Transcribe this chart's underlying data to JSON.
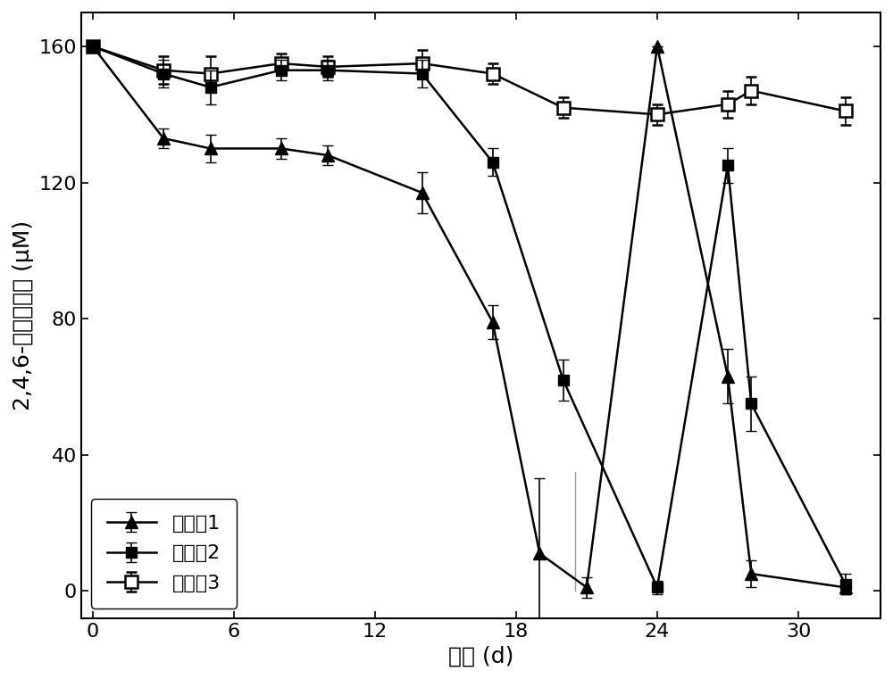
{
  "series1": {
    "label": "实施例1",
    "x": [
      0,
      3,
      5,
      8,
      10,
      14,
      17,
      19,
      21,
      24,
      27,
      28,
      32
    ],
    "y": [
      160,
      133,
      130,
      130,
      128,
      117,
      79,
      11,
      1,
      160,
      63,
      5,
      1
    ],
    "yerr": [
      0,
      3,
      4,
      3,
      3,
      6,
      5,
      22,
      3,
      0,
      8,
      4,
      2
    ],
    "marker": "^",
    "markersize": 10
  },
  "series2": {
    "label": "实施例2",
    "x": [
      0,
      3,
      5,
      8,
      10,
      14,
      17,
      20,
      24,
      27,
      28,
      32
    ],
    "y": [
      160,
      152,
      148,
      153,
      153,
      152,
      126,
      62,
      1,
      125,
      55,
      2
    ],
    "yerr": [
      0,
      4,
      5,
      3,
      3,
      4,
      4,
      6,
      2,
      5,
      8,
      3
    ],
    "marker": "s",
    "markersize": 9
  },
  "series3": {
    "label": "实施例3",
    "x": [
      0,
      3,
      5,
      8,
      10,
      14,
      17,
      20,
      24,
      27,
      28,
      32
    ],
    "y": [
      160,
      153,
      152,
      155,
      154,
      155,
      152,
      142,
      140,
      143,
      147,
      141
    ],
    "yerr": [
      0,
      4,
      5,
      3,
      3,
      4,
      3,
      3,
      3,
      4,
      4,
      4
    ],
    "marker": "s",
    "markersize": 10
  },
  "xlabel": "时间 (d)",
  "ylabel": "2,4,6-三氯酚浓度 (μM)",
  "xlim": [
    -0.5,
    33.5
  ],
  "ylim": [
    -8,
    170
  ],
  "xticks": [
    0,
    6,
    12,
    18,
    24,
    30
  ],
  "yticks": [
    0,
    40,
    80,
    120,
    160
  ],
  "legend_loc": "lower left",
  "line_color": "#000000",
  "linewidth": 1.8,
  "capsize": 4,
  "elinewidth": 1.2,
  "font_size_label": 18,
  "font_size_tick": 16,
  "font_size_legend": 16,
  "vertical_line_x": 20.5,
  "vertical_line_color": "#999999",
  "vertical_line_ymin": 0,
  "vertical_line_ymax": 35
}
